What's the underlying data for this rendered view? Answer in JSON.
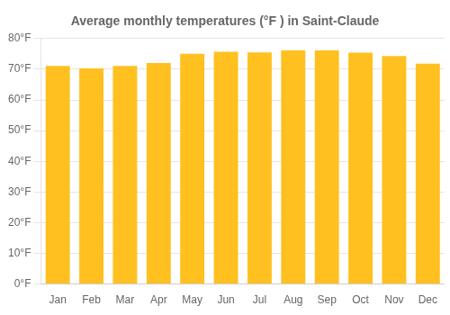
{
  "chart_data": {
    "type": "bar",
    "title": "Average monthly temperatures (°F ) in Saint-Claude",
    "categories": [
      "Jan",
      "Feb",
      "Mar",
      "Apr",
      "May",
      "Jun",
      "Jul",
      "Aug",
      "Sep",
      "Oct",
      "Nov",
      "Dec"
    ],
    "values": [
      71.1,
      70.3,
      71.1,
      72.0,
      75.0,
      75.7,
      75.5,
      76.1,
      76.1,
      75.4,
      74.3,
      71.8
    ],
    "color": "#FFC020",
    "ylim": [
      0,
      80
    ],
    "yticks": [
      {
        "value": 0,
        "label": "0°F"
      },
      {
        "value": 10,
        "label": "10°F"
      },
      {
        "value": 20,
        "label": "20°F"
      },
      {
        "value": 30,
        "label": "30°F"
      },
      {
        "value": 40,
        "label": "40°F"
      },
      {
        "value": 50,
        "label": "50°F"
      },
      {
        "value": 60,
        "label": "60°F"
      },
      {
        "value": 70,
        "label": "70°F"
      },
      {
        "value": 80,
        "label": "80°F"
      }
    ],
    "grid": true
  }
}
